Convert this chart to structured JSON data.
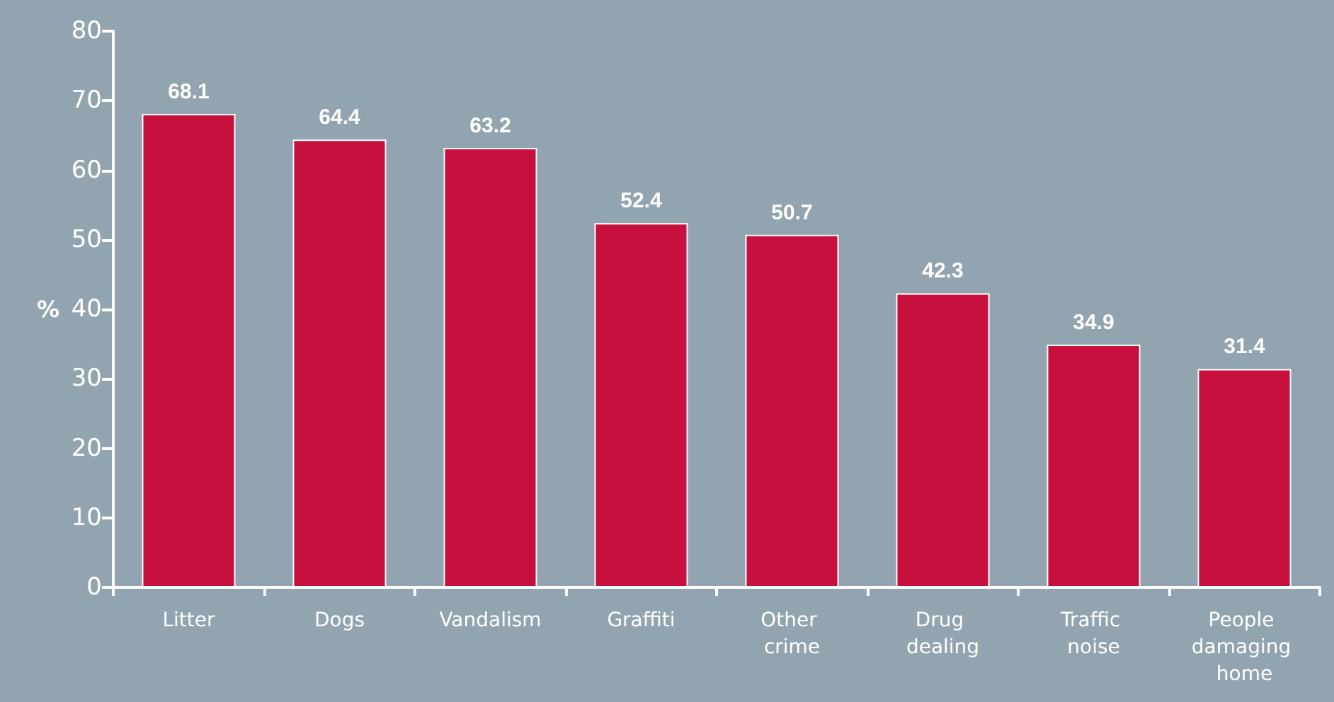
{
  "chart_data": {
    "type": "bar",
    "ylabel": "%",
    "categories": [
      "Litter",
      "Dogs",
      "Vandalism",
      "Graffiti",
      "Other crime",
      "Drug dealing",
      "Traffic noise",
      "People damaging home"
    ],
    "values": [
      68.1,
      64.4,
      63.2,
      52.4,
      50.7,
      42.3,
      34.9,
      31.4
    ],
    "color": "#c8103f",
    "ylim": [
      0,
      80
    ],
    "yticks": [
      0,
      10,
      20,
      30,
      40,
      50,
      60,
      70,
      80
    ],
    "grid": false,
    "data_labels": true
  }
}
